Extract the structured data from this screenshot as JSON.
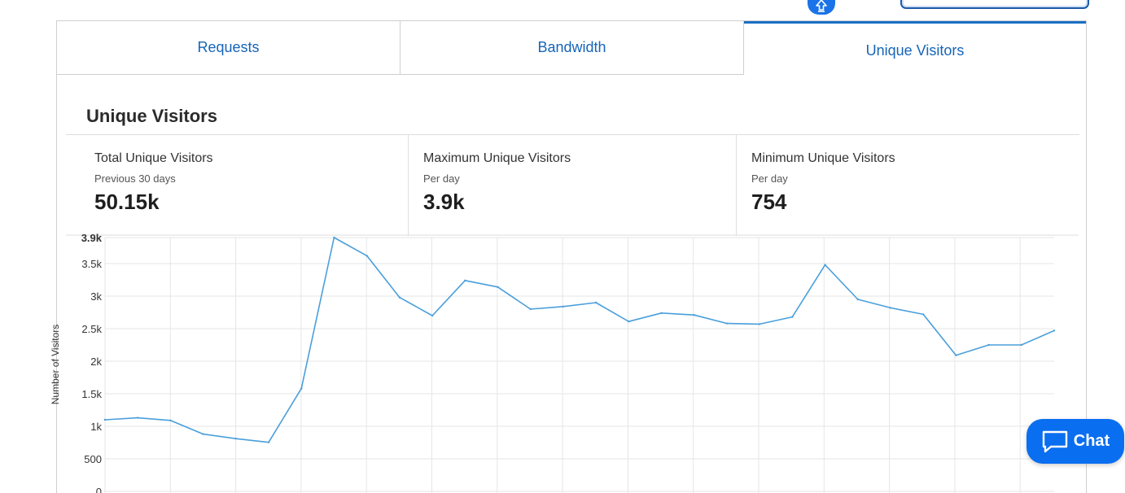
{
  "tabs": [
    {
      "label": "Requests"
    },
    {
      "label": "Bandwidth"
    },
    {
      "label": "Unique Visitors"
    }
  ],
  "active_tab": "Unique Visitors",
  "section": {
    "title": "Unique Visitors"
  },
  "stats": [
    {
      "label": "Total Unique Visitors",
      "sub": "Previous 30 days",
      "value": "50.15k"
    },
    {
      "label": "Maximum Unique Visitors",
      "sub": "Per day",
      "value": "3.9k"
    },
    {
      "label": "Minimum Unique Visitors",
      "sub": "Per day",
      "value": "754"
    }
  ],
  "chat": {
    "label": "Chat"
  },
  "icons": {
    "top": "upload-icon",
    "chat": "chat-bubble-icon"
  },
  "colors": {
    "accent": "#1565b8",
    "line": "#4a9fdb",
    "chat": "#0a6ef0"
  },
  "chart_data": {
    "type": "line",
    "ylabel": "Number of Visitors",
    "ylim": [
      0,
      3900
    ],
    "y_ticks": [
      {
        "value": 0,
        "label": "0"
      },
      {
        "value": 500,
        "label": "500"
      },
      {
        "value": 1000,
        "label": "1k"
      },
      {
        "value": 1500,
        "label": "1.5k"
      },
      {
        "value": 2000,
        "label": "2k"
      },
      {
        "value": 2500,
        "label": "2.5k"
      },
      {
        "value": 3000,
        "label": "3k"
      },
      {
        "value": 3500,
        "label": "3.5k"
      },
      {
        "value": 3900,
        "label": "3.9k"
      }
    ],
    "grid": true,
    "series": [
      {
        "values": [
          1100,
          1130,
          1090,
          880,
          810,
          754,
          1580,
          3900,
          3620,
          2980,
          2700,
          3240,
          3140,
          2800,
          2840,
          2900,
          2610,
          2740,
          2710,
          2580,
          2570,
          2680,
          3480,
          2950,
          2820,
          2720,
          2090,
          2250,
          2250,
          2470
        ]
      }
    ]
  }
}
